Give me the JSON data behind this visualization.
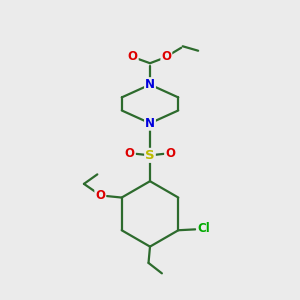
{
  "bg_color": "#ebebeb",
  "bond_color": "#2d6b2d",
  "bond_lw": 1.6,
  "atom_colors": {
    "N": "#0000dd",
    "O": "#dd0000",
    "S": "#bbbb00",
    "Cl": "#00aa00",
    "C": "#2d6b2d"
  },
  "font_size": 8.5,
  "figsize": [
    3.0,
    3.0
  ],
  "dpi": 100
}
